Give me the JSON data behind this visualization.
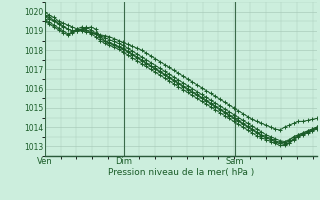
{
  "title": "Pression niveau de la mer( hPa )",
  "bg_color": "#cceedd",
  "grid_color": "#aaccbb",
  "line_color": "#1a5c28",
  "ylim": [
    1012.5,
    1020.5
  ],
  "yticks": [
    1013,
    1014,
    1015,
    1016,
    1017,
    1018,
    1019,
    1020
  ],
  "xtick_labels": [
    "Ven",
    "Dim",
    "Sam"
  ],
  "xtick_positions": [
    0,
    0.29,
    0.7
  ],
  "n_points": 60,
  "series": [
    [
      1020.0,
      1019.8,
      1019.7,
      1019.5,
      1019.4,
      1019.3,
      1019.2,
      1019.1,
      1019.0,
      1018.95,
      1018.9,
      1018.85,
      1018.8,
      1018.75,
      1018.7,
      1018.6,
      1018.5,
      1018.4,
      1018.3,
      1018.2,
      1018.1,
      1018.0,
      1017.85,
      1017.7,
      1017.55,
      1017.4,
      1017.25,
      1017.1,
      1016.95,
      1016.8,
      1016.65,
      1016.5,
      1016.35,
      1016.2,
      1016.05,
      1015.9,
      1015.75,
      1015.6,
      1015.45,
      1015.3,
      1015.15,
      1015.0,
      1014.85,
      1014.7,
      1014.55,
      1014.4,
      1014.3,
      1014.2,
      1014.1,
      1014.0,
      1013.9,
      1013.85,
      1014.0,
      1014.1,
      1014.2,
      1014.3,
      1014.3,
      1014.35,
      1014.4,
      1014.45
    ],
    [
      1019.75,
      1019.6,
      1019.5,
      1019.35,
      1019.2,
      1019.1,
      1019.0,
      1019.05,
      1019.1,
      1019.15,
      1019.2,
      1019.1,
      1018.7,
      1018.5,
      1018.4,
      1018.3,
      1018.2,
      1018.1,
      1017.95,
      1017.8,
      1017.65,
      1017.5,
      1017.35,
      1017.2,
      1017.05,
      1016.9,
      1016.75,
      1016.6,
      1016.45,
      1016.3,
      1016.15,
      1016.0,
      1015.85,
      1015.7,
      1015.55,
      1015.4,
      1015.25,
      1015.1,
      1014.95,
      1014.8,
      1014.65,
      1014.5,
      1014.35,
      1014.2,
      1014.05,
      1013.9,
      1013.75,
      1013.6,
      1013.5,
      1013.4,
      1013.3,
      1013.2,
      1013.2,
      1013.3,
      1013.5,
      1013.6,
      1013.7,
      1013.8,
      1013.9,
      1014.0
    ],
    [
      1019.85,
      1019.7,
      1019.55,
      1019.4,
      1019.25,
      1019.1,
      1019.0,
      1019.0,
      1019.05,
      1019.05,
      1018.95,
      1018.85,
      1018.75,
      1018.65,
      1018.55,
      1018.45,
      1018.35,
      1018.25,
      1018.1,
      1017.95,
      1017.8,
      1017.65,
      1017.5,
      1017.35,
      1017.2,
      1017.05,
      1016.9,
      1016.75,
      1016.6,
      1016.45,
      1016.3,
      1016.15,
      1016.0,
      1015.85,
      1015.7,
      1015.55,
      1015.4,
      1015.25,
      1015.1,
      1014.95,
      1014.8,
      1014.65,
      1014.5,
      1014.35,
      1014.2,
      1014.05,
      1013.9,
      1013.75,
      1013.6,
      1013.5,
      1013.4,
      1013.3,
      1013.25,
      1013.35,
      1013.5,
      1013.6,
      1013.7,
      1013.8,
      1013.9,
      1014.0
    ],
    [
      1019.6,
      1019.45,
      1019.3,
      1019.15,
      1019.0,
      1018.85,
      1018.9,
      1019.0,
      1019.1,
      1019.2,
      1019.05,
      1018.9,
      1018.6,
      1018.45,
      1018.35,
      1018.25,
      1018.15,
      1018.05,
      1017.9,
      1017.75,
      1017.6,
      1017.45,
      1017.3,
      1017.15,
      1017.0,
      1016.85,
      1016.7,
      1016.55,
      1016.4,
      1016.25,
      1016.1,
      1015.95,
      1015.8,
      1015.65,
      1015.5,
      1015.35,
      1015.2,
      1015.05,
      1014.9,
      1014.75,
      1014.6,
      1014.45,
      1014.3,
      1014.15,
      1014.0,
      1013.85,
      1013.7,
      1013.55,
      1013.45,
      1013.35,
      1013.25,
      1013.15,
      1013.1,
      1013.2,
      1013.4,
      1013.55,
      1013.65,
      1013.75,
      1013.85,
      1013.95
    ],
    [
      1019.5,
      1019.35,
      1019.2,
      1019.05,
      1018.9,
      1018.8,
      1018.95,
      1019.1,
      1019.2,
      1019.05,
      1018.85,
      1018.7,
      1018.5,
      1018.35,
      1018.25,
      1018.15,
      1018.05,
      1017.9,
      1017.75,
      1017.6,
      1017.45,
      1017.3,
      1017.15,
      1017.0,
      1016.85,
      1016.7,
      1016.55,
      1016.4,
      1016.25,
      1016.1,
      1015.95,
      1015.8,
      1015.65,
      1015.5,
      1015.35,
      1015.2,
      1015.05,
      1014.9,
      1014.75,
      1014.6,
      1014.45,
      1014.3,
      1014.15,
      1014.0,
      1013.85,
      1013.7,
      1013.55,
      1013.45,
      1013.35,
      1013.25,
      1013.15,
      1013.05,
      1013.05,
      1013.15,
      1013.35,
      1013.5,
      1013.6,
      1013.7,
      1013.8,
      1013.9
    ]
  ]
}
